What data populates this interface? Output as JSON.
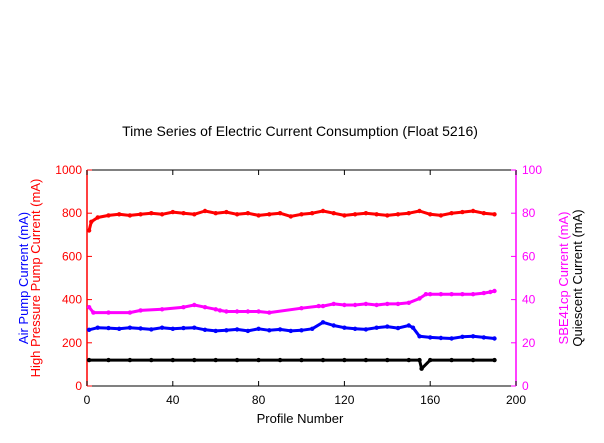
{
  "chart_data": {
    "type": "scatter",
    "title": "Time Series of Electric Current Consumption (Float 5216)",
    "xlabel": "Profile Number",
    "xlim": [
      0,
      200
    ],
    "xticks": [
      0,
      40,
      80,
      120,
      160,
      200
    ],
    "left_axis": {
      "ylim": [
        0,
        1000
      ],
      "ticks": [
        0,
        200,
        400,
        600,
        800,
        1000
      ],
      "color": "#ff0000",
      "labels": [
        {
          "text": "High Pressure Pump Current (mA)",
          "color": "#ff0000"
        },
        {
          "text": "Air Pump Current (mA)",
          "color": "#0000ff"
        }
      ]
    },
    "right_axis": {
      "ylim": [
        0,
        100
      ],
      "ticks": [
        0,
        20,
        40,
        60,
        80,
        100
      ],
      "color": "#ff00ff",
      "labels": [
        {
          "text": "SBE41cp Current (mA)",
          "color": "#ff00ff"
        },
        {
          "text": "Quiescent Current (mA)",
          "color": "#000000"
        }
      ]
    },
    "series": [
      {
        "axis": "left",
        "color": "#ff0000",
        "x": [
          1,
          2,
          5,
          10,
          15,
          20,
          25,
          30,
          35,
          40,
          45,
          50,
          55,
          60,
          65,
          70,
          75,
          80,
          85,
          90,
          95,
          100,
          105,
          110,
          115,
          120,
          125,
          130,
          135,
          140,
          145,
          150,
          155,
          160,
          165,
          170,
          175,
          180,
          185,
          190
        ],
        "values": [
          720,
          760,
          780,
          790,
          795,
          790,
          795,
          800,
          795,
          805,
          800,
          795,
          810,
          800,
          805,
          795,
          800,
          790,
          795,
          800,
          785,
          795,
          800,
          810,
          800,
          790,
          795,
          800,
          795,
          790,
          795,
          800,
          810,
          795,
          790,
          800,
          805,
          810,
          800,
          795
        ]
      },
      {
        "axis": "left",
        "color": "#0000ff",
        "x": [
          1,
          5,
          10,
          15,
          20,
          25,
          30,
          35,
          40,
          45,
          50,
          55,
          60,
          65,
          70,
          75,
          80,
          85,
          90,
          95,
          100,
          105,
          110,
          115,
          120,
          125,
          130,
          135,
          140,
          145,
          150,
          152,
          155,
          160,
          165,
          170,
          175,
          180,
          185,
          190
        ],
        "values": [
          260,
          270,
          268,
          265,
          270,
          266,
          262,
          270,
          265,
          268,
          270,
          260,
          255,
          258,
          262,
          255,
          265,
          258,
          262,
          255,
          258,
          265,
          295,
          280,
          270,
          265,
          262,
          270,
          275,
          268,
          280,
          270,
          230,
          225,
          222,
          220,
          228,
          230,
          225,
          220
        ]
      },
      {
        "axis": "right",
        "color": "#ff00ff",
        "x": [
          1,
          3,
          10,
          20,
          25,
          35,
          45,
          50,
          55,
          60,
          62,
          65,
          70,
          75,
          80,
          85,
          100,
          108,
          110,
          115,
          120,
          125,
          130,
          135,
          140,
          145,
          150,
          155,
          158,
          160,
          165,
          170,
          175,
          180,
          185,
          188,
          190
        ],
        "values": [
          36.5,
          34.0,
          34.0,
          34.0,
          35.0,
          35.5,
          36.5,
          37.5,
          36.5,
          35.5,
          35.0,
          34.5,
          34.5,
          34.5,
          34.5,
          34.0,
          36.0,
          37.0,
          37.0,
          38.0,
          37.5,
          37.5,
          38.0,
          37.5,
          38.0,
          38.0,
          38.5,
          40.5,
          42.5,
          42.5,
          42.5,
          42.5,
          42.5,
          42.5,
          43.0,
          43.5,
          44.0
        ]
      },
      {
        "axis": "right",
        "color": "#000000",
        "x": [
          1,
          10,
          20,
          30,
          40,
          50,
          60,
          70,
          80,
          90,
          100,
          110,
          120,
          130,
          140,
          150,
          155,
          156,
          160,
          170,
          180,
          190
        ],
        "values": [
          12,
          12,
          12,
          12,
          12,
          12,
          12,
          12,
          12,
          12,
          12,
          12,
          12,
          12,
          12,
          12,
          12,
          8,
          12,
          12,
          12,
          12
        ]
      }
    ]
  }
}
